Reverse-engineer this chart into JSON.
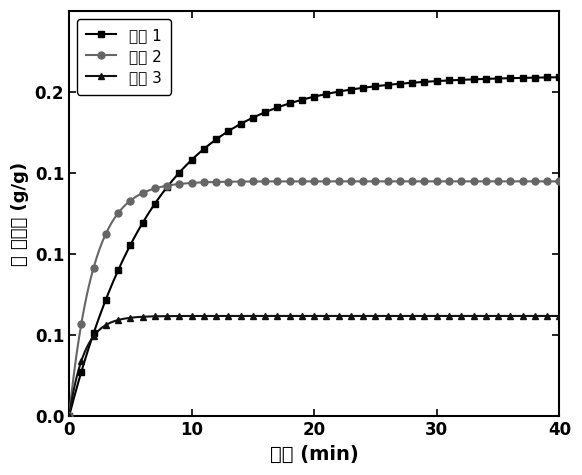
{
  "title": "",
  "xlabel": "时间 (min)",
  "ylabel": "水 吸附量 (g/g)",
  "xlim": [
    0,
    40
  ],
  "ylim": [
    0.0,
    0.25
  ],
  "yticks": [
    0.0,
    0.05,
    0.1,
    0.15,
    0.2
  ],
  "xticks": [
    0,
    10,
    20,
    30,
    40
  ],
  "legend_labels": [
    "实例 1",
    "实例 2",
    "实例 3"
  ],
  "series1_color": "#000000",
  "series2_color": "#666666",
  "series3_color": "#111111",
  "background_color": "#ffffff",
  "k1": 0.14,
  "k2": 0.5,
  "k3": 0.8,
  "series1_max": 0.21,
  "series2_max": 0.145,
  "series3_max": 0.062,
  "marker_interval1": 1,
  "marker_interval2": 1,
  "marker_interval3": 1
}
